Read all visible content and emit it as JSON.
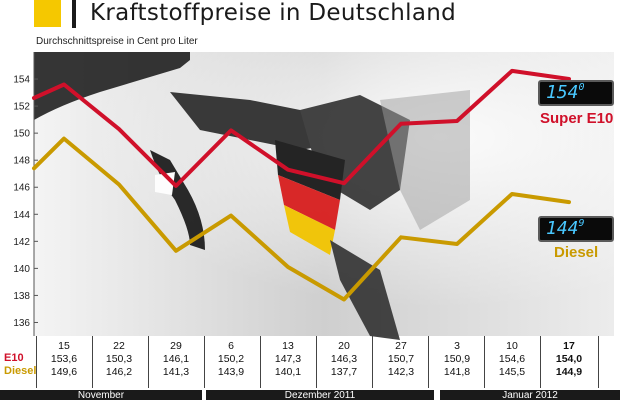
{
  "header": {
    "title": "Kraftstoffpreise in Deutschland",
    "subtitle": "Durchschnittspreise in Cent pro Liter"
  },
  "chart_data": {
    "type": "line",
    "title": "Kraftstoffpreise in Deutschland",
    "subtitle": "Durchschnittspreise in Cent pro Liter",
    "ylim": [
      135,
      156
    ],
    "yticks": [
      136,
      138,
      140,
      142,
      144,
      146,
      148,
      150,
      152,
      154
    ],
    "grid": false,
    "x": [
      "15",
      "22",
      "29",
      "6",
      "13",
      "20",
      "27",
      "3",
      "10",
      "17"
    ],
    "series": [
      {
        "name": "Super E10",
        "color": "#d0102a",
        "values": [
          153.6,
          150.3,
          146.1,
          150.2,
          147.3,
          146.3,
          150.7,
          150.9,
          154.6,
          154.0
        ]
      },
      {
        "name": "Diesel",
        "color": "#c99a00",
        "values": [
          149.6,
          146.2,
          141.3,
          143.9,
          140.1,
          137.7,
          142.3,
          141.8,
          145.5,
          144.9
        ]
      }
    ],
    "series_leadin_left": {
      "Super E10": 152.6,
      "Diesel": 147.4
    }
  },
  "labels": {
    "super": "Super E10",
    "diesel": "Diesel",
    "lcd_super_main": "154",
    "lcd_super_decimal": "0",
    "lcd_diesel_main": "144",
    "lcd_diesel_decimal": "9"
  },
  "table": {
    "row_e10": "E10",
    "row_diesel": "Diesel",
    "dates": [
      "15",
      "22",
      "29",
      "6",
      "13",
      "20",
      "27",
      "3",
      "10",
      "17"
    ],
    "e10": [
      "153,6",
      "150,3",
      "146,1",
      "150,2",
      "147,3",
      "146,3",
      "150,7",
      "150,9",
      "154,6",
      "154,0"
    ],
    "diesel": [
      "149,6",
      "146,2",
      "141,3",
      "143,9",
      "140,1",
      "137,7",
      "142,3",
      "141,8",
      "145,5",
      "144,9"
    ],
    "bold_last": true
  },
  "months": [
    {
      "label": "November"
    },
    {
      "label": "Dezember 2011"
    },
    {
      "label": "Januar 2012"
    }
  ]
}
